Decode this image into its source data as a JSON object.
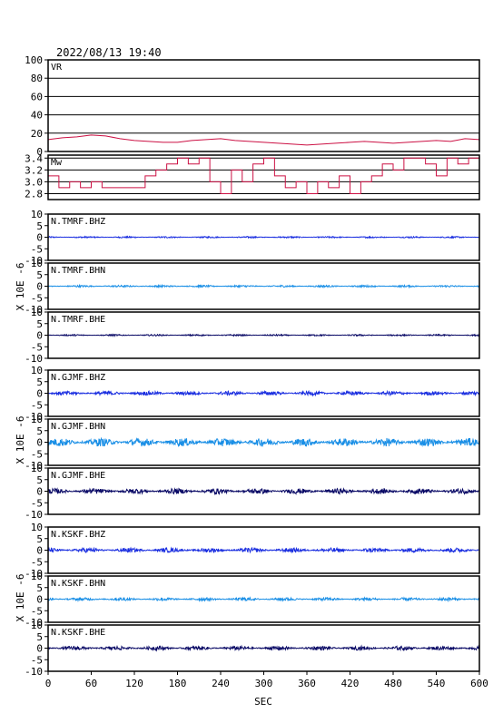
{
  "title": "2022/08/13  19:40",
  "chart_data": {
    "type": "line",
    "title": "2022/08/13  19:40",
    "xlabel": "SEC",
    "xlim": [
      0,
      600
    ],
    "xticks": [
      0,
      60,
      120,
      180,
      240,
      300,
      360,
      420,
      480,
      540,
      600
    ],
    "unit_label": "X 10E -6",
    "colors": {
      "vr": "#cc1144",
      "mw": "#cc1144",
      "bhz": "#1a2ee0",
      "bhn": "#1a8fe6",
      "bhe": "#0a0a66",
      "frame": "#000000"
    },
    "panels": [
      {
        "id": "vr",
        "label": "VR",
        "ylim": [
          0,
          100
        ],
        "yticks": [
          0,
          20,
          40,
          60,
          80,
          100
        ],
        "grid": true,
        "series": [
          {
            "x": [
              0,
              20,
              40,
              60,
              80,
              100,
              120,
              140,
              160,
              180,
              200,
              220,
              240,
              260,
              280,
              300,
              320,
              340,
              360,
              380,
              400,
              420,
              440,
              460,
              480,
              500,
              520,
              540,
              560,
              580,
              600
            ],
            "y": [
              13,
              15,
              16,
              18,
              17,
              14,
              12,
              11,
              10,
              10,
              12,
              13,
              14,
              12,
              11,
              10,
              9,
              8,
              7,
              8,
              9,
              10,
              11,
              10,
              9,
              10,
              11,
              12,
              11,
              14,
              13
            ]
          }
        ]
      },
      {
        "id": "mw",
        "label": "Mw",
        "ylim": [
          2.7,
          3.45
        ],
        "yticks": [
          2.8,
          3.0,
          3.2,
          3.4
        ],
        "tick_labels": [
          "2.8",
          "3.0",
          "3.2",
          "3.4"
        ],
        "grid": true,
        "series": [
          {
            "x": [
              0,
              15,
              30,
              45,
              60,
              75,
              90,
              105,
              120,
              135,
              150,
              165,
              180,
              195,
              210,
              225,
              240,
              255,
              270,
              285,
              300,
              315,
              330,
              345,
              360,
              375,
              390,
              405,
              420,
              435,
              450,
              465,
              480,
              495,
              510,
              525,
              540,
              555,
              570,
              585,
              600
            ],
            "y": [
              3.1,
              2.9,
              3.0,
              2.9,
              3.0,
              2.9,
              2.9,
              2.9,
              2.9,
              3.1,
              3.2,
              3.3,
              3.4,
              3.3,
              3.4,
              3.0,
              2.8,
              3.2,
              3.0,
              3.3,
              3.4,
              3.1,
              2.9,
              3.0,
              2.8,
              3.0,
              2.9,
              3.1,
              2.8,
              3.0,
              3.1,
              3.3,
              3.2,
              3.4,
              3.4,
              3.3,
              3.1,
              3.4,
              3.3,
              3.4,
              3.4
            ]
          }
        ]
      },
      {
        "id": "tmrf-bhz",
        "label": "N.TMRF.BHZ",
        "ylim": [
          -10,
          10
        ],
        "yticks": [
          -10,
          -5,
          0,
          5,
          10
        ],
        "component": "bhz",
        "amplitude": 0.35
      },
      {
        "id": "tmrf-bhn",
        "label": "N.TMRF.BHN",
        "ylim": [
          -10,
          10
        ],
        "yticks": [
          -10,
          -5,
          0,
          5,
          10
        ],
        "component": "bhn",
        "amplitude": 0.45
      },
      {
        "id": "tmrf-bhe",
        "label": "N.TMRF.BHE",
        "ylim": [
          -10,
          10
        ],
        "yticks": [
          -10,
          -5,
          0,
          5,
          10
        ],
        "component": "bhe",
        "amplitude": 0.35
      },
      {
        "id": "gjmf-bhz",
        "label": "N.GJMF.BHZ",
        "ylim": [
          -10,
          10
        ],
        "yticks": [
          -10,
          -5,
          0,
          5,
          10
        ],
        "component": "bhz",
        "amplitude": 0.9
      },
      {
        "id": "gjmf-bhn",
        "label": "N.GJMF.BHN",
        "ylim": [
          -10,
          10
        ],
        "yticks": [
          -10,
          -5,
          0,
          5,
          10
        ],
        "component": "bhn",
        "amplitude": 1.8
      },
      {
        "id": "gjmf-bhe",
        "label": "N.GJMF.BHE",
        "ylim": [
          -10,
          10
        ],
        "yticks": [
          -10,
          -5,
          0,
          5,
          10
        ],
        "component": "bhe",
        "amplitude": 1.2
      },
      {
        "id": "kskf-bhz",
        "label": "N.KSKF.BHZ",
        "ylim": [
          -10,
          10
        ],
        "yticks": [
          -10,
          -5,
          0,
          5,
          10
        ],
        "component": "bhz",
        "amplitude": 1.0
      },
      {
        "id": "kskf-bhn",
        "label": "N.KSKF.BHN",
        "ylim": [
          -10,
          10
        ],
        "yticks": [
          -10,
          -5,
          0,
          5,
          10
        ],
        "component": "bhn",
        "amplitude": 0.7
      },
      {
        "id": "kskf-bhe",
        "label": "N.KSKF.BHE",
        "ylim": [
          -10,
          10
        ],
        "yticks": [
          -10,
          -5,
          0,
          5,
          10
        ],
        "component": "bhe",
        "amplitude": 0.9
      }
    ]
  }
}
